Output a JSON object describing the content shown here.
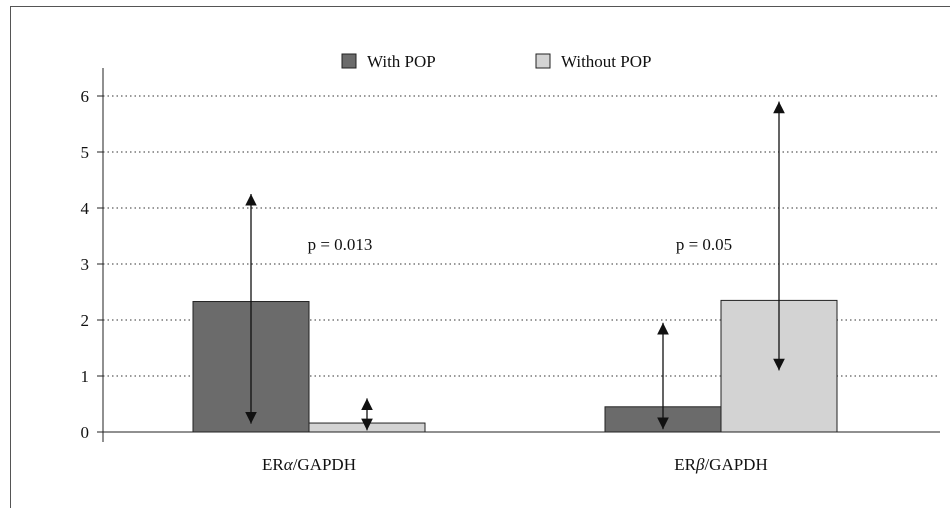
{
  "chart_data": {
    "type": "bar",
    "categories": [
      "ERα/GAPDH",
      "ERβ/GAPDH"
    ],
    "category_labels": [
      {
        "prefix": "ER",
        "greek": "α",
        "suffix": "/GAPDH"
      },
      {
        "prefix": "ER",
        "greek": "β",
        "suffix": "/GAPDH"
      }
    ],
    "series": [
      {
        "name": "With POP",
        "values": [
          2.33,
          0.45
        ],
        "color": "#6b6b6b",
        "error_range": [
          [
            0.15,
            4.25
          ],
          [
            0.05,
            1.95
          ]
        ]
      },
      {
        "name": "Without POP",
        "values": [
          0.16,
          2.35
        ],
        "color": "#d3d3d3",
        "error_range": [
          [
            0.03,
            0.6
          ],
          [
            1.1,
            5.9
          ]
        ]
      }
    ],
    "annotations": [
      "p = 0.013",
      "p = 0.05"
    ],
    "ylim": [
      0,
      6
    ],
    "yticks": [
      "0",
      "1",
      "2",
      "3",
      "4",
      "5",
      "6"
    ],
    "grid": "horizontal dotted",
    "legend_position": "top-center",
    "xlabel": "",
    "ylabel": "",
    "title": ""
  }
}
